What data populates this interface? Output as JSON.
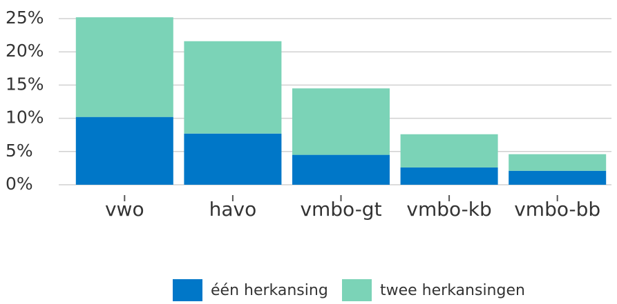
{
  "chart_data": {
    "type": "stacked_bar",
    "categories": [
      "vwo",
      "havo",
      "vmbo-gt",
      "vmbo-kb",
      "vmbo-bb"
    ],
    "series": [
      {
        "name": "één herkansing",
        "color": "#0077c8",
        "values": [
          10.2,
          7.7,
          4.5,
          2.6,
          2.1
        ]
      },
      {
        "name": "twee herkansingen",
        "color": "#7bd3b7",
        "values": [
          15.0,
          13.9,
          10.0,
          5.0,
          2.5
        ]
      }
    ],
    "ylim": [
      0,
      25
    ],
    "yticks": [
      {
        "value": 0,
        "label": "0%"
      },
      {
        "value": 5,
        "label": "5%"
      },
      {
        "value": 10,
        "label": "10%"
      },
      {
        "value": 15,
        "label": "15%"
      },
      {
        "value": 20,
        "label": "20%"
      },
      {
        "value": 25,
        "label": "25%"
      }
    ],
    "grid": true,
    "legend": "bottom"
  }
}
